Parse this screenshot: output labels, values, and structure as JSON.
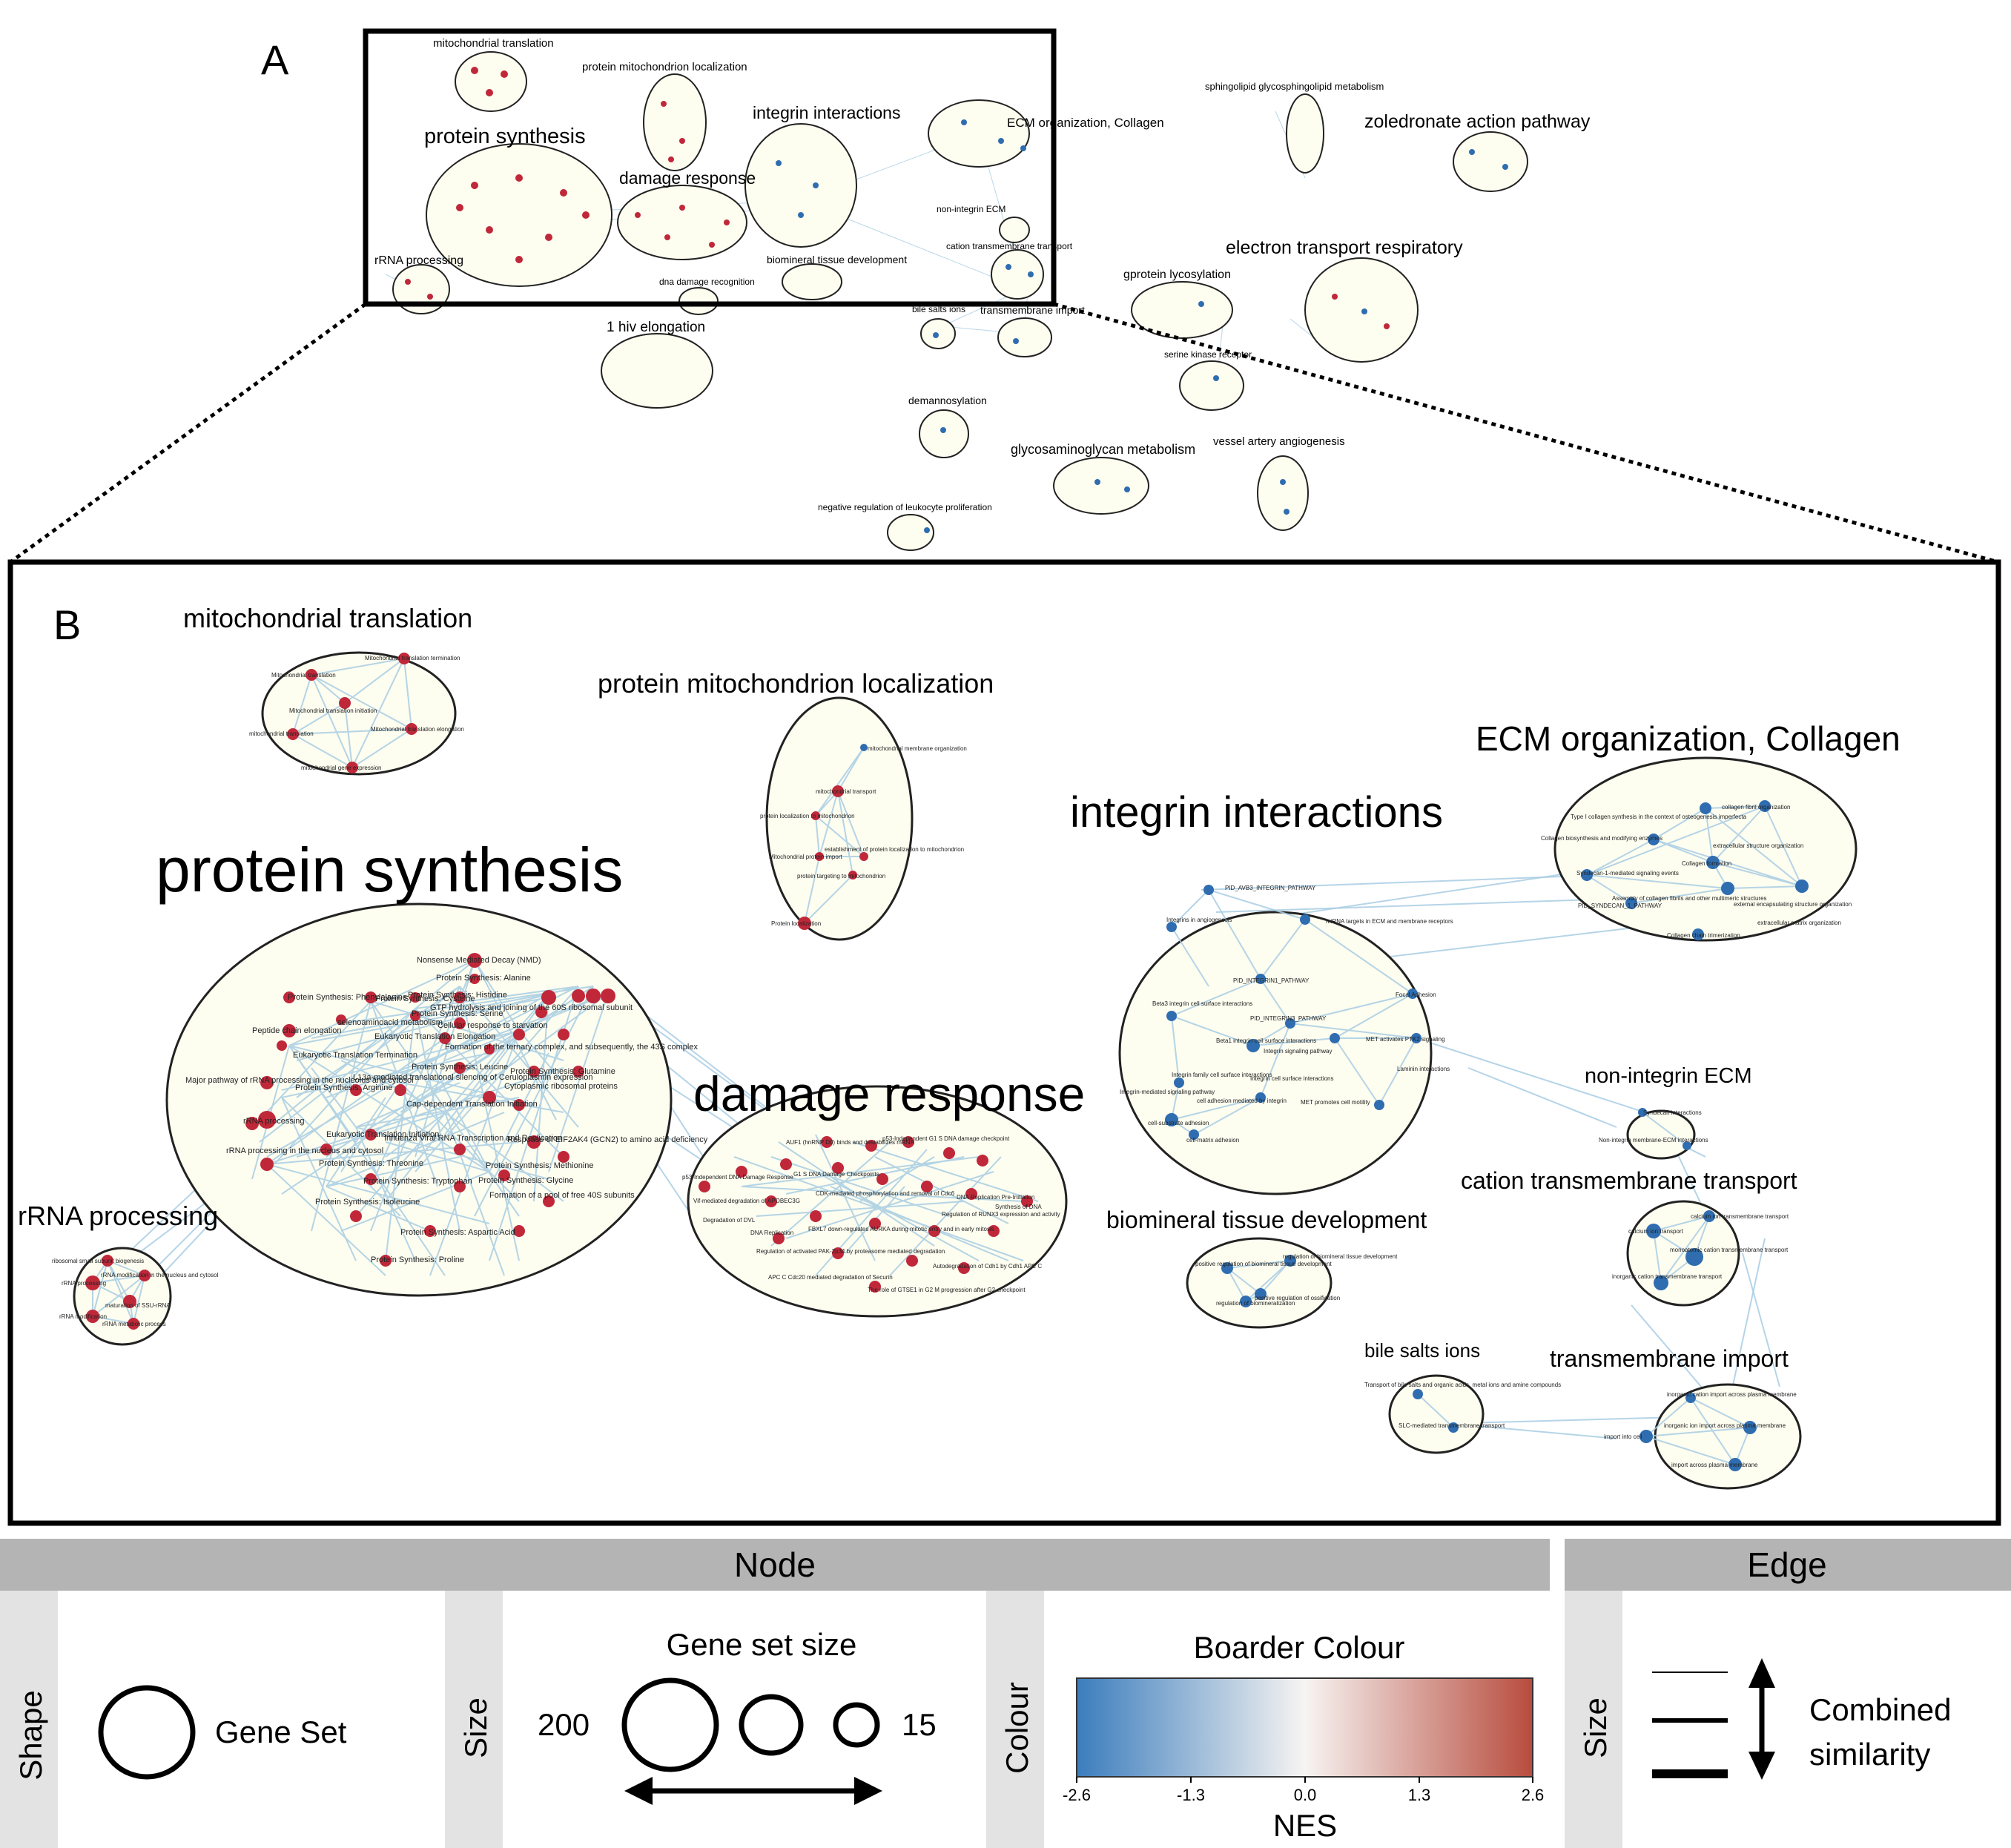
{
  "panel_a": {
    "letter": "A",
    "clusters": [
      "mitochondrial translation",
      "protein mitochondrion localization",
      "protein synthesis",
      "integrin interactions",
      "ECM organization, Collagen",
      "damage response",
      "non-integrin ECM",
      "cation transmembrane transport",
      "biomineral tissue development",
      "rRNA processing",
      "dna damage recognition",
      "bile salts ions",
      "transmembrane import",
      "1 hiv elongation",
      "sphingolipid glycosphingolipid metabolism",
      "zoledronate action pathway",
      "electron transport respiratory",
      "gprotein lycosylation",
      "serine kinase receptor",
      "demannosylation",
      "glycosaminoglycan metabolism",
      "vessel artery angiogenesis",
      "negative regulation of leukocyte proliferation"
    ]
  },
  "panel_b": {
    "letter": "B",
    "clusters": {
      "mito_translation": {
        "label": "mitochondrial translation",
        "nodes": [
          "Mitochondrial translation termination",
          "Mitochondrial translation",
          "Mitochondrial translation initiation",
          "mitochondrial translation",
          "Mitochondrial translation elongation",
          "mitochondrial gene expression"
        ]
      },
      "mito_localization": {
        "label": "protein mitochondrion localization",
        "nodes": [
          "mitochondrial membrane organization",
          "mitochondrial transport",
          "protein localization to mitochondrion",
          "Mitochondrial protein import",
          "establishment of protein localization to mitochondrion",
          "protein targeting to mitochondrion",
          "Protein localization"
        ]
      },
      "protein_synthesis": {
        "label": "protein synthesis",
        "nodes": [
          "Nonsense Mediated Decay (NMD)",
          "Protein Synthesis: Alanine",
          "Protein Synthesis: Phenylalanine",
          "Protein Synthesis: Cysteine",
          "Protein Synthesis: Histidine",
          "selenoaminoacid metabolism",
          "Protein Synthesis: Serine",
          "Eukaryotic Translation Elongation",
          "Peptide chain elongation",
          "Eukaryotic Translation Termination",
          "Protein Synthesis: Leucine",
          "Major pathway of rRNA processing in the nucleolus and cytosol",
          "Protein Synthesis: Arginine",
          "Cap-dependent Translation Initiation",
          "rRNA processing",
          "Eukaryotic Translation Initiation",
          "rRNA processing in the nucleus and cytosol",
          "Protein Synthesis: Threonine",
          "Protein Synthesis: Tryptophan",
          "Protein Synthesis: Isoleucine",
          "Protein Synthesis: Methionine",
          "Protein Synthesis: Glycine",
          "Protein Synthesis: Aspartic Acid",
          "Protein Synthesis: Proline",
          "Protein Synthesis: Glutamine",
          "Cytoplasmic ribosomal proteins",
          "Formation of the ternary complex, and subsequently, the 43S complex",
          "Response of EIF2AK4 (GCN2) to amino acid deficiency",
          "Formation of a pool of free 40S subunits",
          "Influenza Viral RNA Transcription and Replication",
          "L13a-mediated translational silencing of Ceruloplasmin expression",
          "GTP hydrolysis and joining of the 60S ribosomal subunit",
          "Cellular response to starvation"
        ]
      },
      "rrna_processing": {
        "label": "rRNA processing",
        "nodes": [
          "ribosomal small subunit biogenesis",
          "rRNA modification in the nucleus and cytosol",
          "rRNA processing",
          "maturation of SSU-rRNA",
          "rRNA modification",
          "rRNA metabolic process"
        ]
      },
      "damage_response": {
        "label": "damage response",
        "nodes": [
          "AUF1 (hnRNP D0) binds and destabilizes mRNA",
          "p53-Independent G1 S DNA damage checkpoint",
          "p53-Independent DNA Damage Response",
          "G1 S DNA Damage Checkpoints",
          "Vif-mediated degradation of APOBEC3G",
          "Degradation of DVL",
          "DNA Replication",
          "Regulation of activated PAK-2p34 by proteasome mediated degradation",
          "APC C Cdc20 mediated degradation of Securin",
          "CDK-mediated phosphorylation and removal of Cdc6",
          "FBXL7 down-regulates AURKA during mitotic entry and in early mitosis",
          "Regulation of RUNX3 expression and activity",
          "DNA Replication Pre-Initiation",
          "Synthesis of DNA",
          "The role of GTSE1 in G2 M progression after G2 checkpoint",
          "Autodegradation of Cdh1 by Cdh1 APC C"
        ]
      },
      "integrin": {
        "label": "integrin interactions",
        "nodes": [
          "PID_AVB3_INTEGRIN_PATHWAY",
          "Integrins in angiogenesis",
          "miRNA targets in ECM and membrane receptors",
          "PID_INTEGRIN1_PATHWAY",
          "Beta3 integrin cell surface interactions",
          "PID_INTEGRIN3_PATHWAY",
          "Beta1 integrin cell surface interactions",
          "Integrin signaling pathway",
          "Focal Adhesion",
          "MET activates PTK2 signaling",
          "Integrin family cell surface interactions",
          "Integrin-mediated signaling pathway",
          "Integrin cell surface interactions",
          "Laminin interactions",
          "cell adhesion mediated by integrin",
          "MET promotes cell motility",
          "cell-substrate adhesion",
          "cell-matrix adhesion"
        ]
      },
      "ecm": {
        "label": "ECM organization, Collagen",
        "nodes": [
          "collagen fibril organization",
          "Type I collagen synthesis in the context of osteogenesis imperfecta",
          "Collagen biosynthesis and modifying enzymes",
          "extracellular structure organization",
          "Collagen formation",
          "Syndecan-1-mediated signaling events",
          "external encapsulating structure organization",
          "Assembly of collagen fibrils and other multimeric structures",
          "PID_SYNDECAN_1_PATHWAY",
          "extracellular matrix organization",
          "Collagen chain trimerization"
        ]
      },
      "non_integrin": {
        "label": "non-integrin ECM",
        "nodes": [
          "Syndecan interactions",
          "Non-integrin membrane-ECM interactions"
        ]
      },
      "cation": {
        "label": "cation transmembrane transport",
        "nodes": [
          "calcium ion transmembrane transport",
          "calcium ion transport",
          "monoatomic cation transmembrane transport",
          "inorganic cation transmembrane transport"
        ]
      },
      "biomineral": {
        "label": "biomineral tissue development",
        "nodes": [
          "positive regulation of biomineral tissue development",
          "regulation of biomineral tissue development",
          "regulation of biomineralization",
          "positive regulation of ossification"
        ]
      },
      "bile": {
        "label": "bile salts ions",
        "nodes": [
          "Transport of bile salts and organic acids, metal ions and amine compounds",
          "SLC-mediated transmembrane transport"
        ]
      },
      "tm_import": {
        "label": "transmembrane import",
        "nodes": [
          "inorganic cation import across plasma membrane",
          "import into cell",
          "inorganic ion import across plasma membrane",
          "import across plasma membrane"
        ]
      }
    }
  },
  "legend": {
    "node_header": "Node",
    "edge_header": "Edge",
    "shape": {
      "side_label": "Shape",
      "item": "Gene Set"
    },
    "size": {
      "side_label": "Size",
      "title": "Gene set size",
      "max": "200",
      "min": "15"
    },
    "colour": {
      "side_label": "Colour",
      "title": "Boarder Colour",
      "ticks": [
        "-2.6",
        "-1.3",
        "0.0",
        "1.3",
        "2.6"
      ],
      "axis_label": "NES",
      "colors": {
        "negative": "#3b7dbd",
        "neutral": "#f7f4f2",
        "positive": "#b84c3e"
      }
    },
    "edge_size": {
      "side_label": "Size",
      "text_line1": "Combined",
      "text_line2": "similarity"
    }
  },
  "colors": {
    "up": "#c0283a",
    "down": "#2f6db0",
    "edge": "#a8cde3",
    "cluster_fill": "#fdfdf0"
  }
}
